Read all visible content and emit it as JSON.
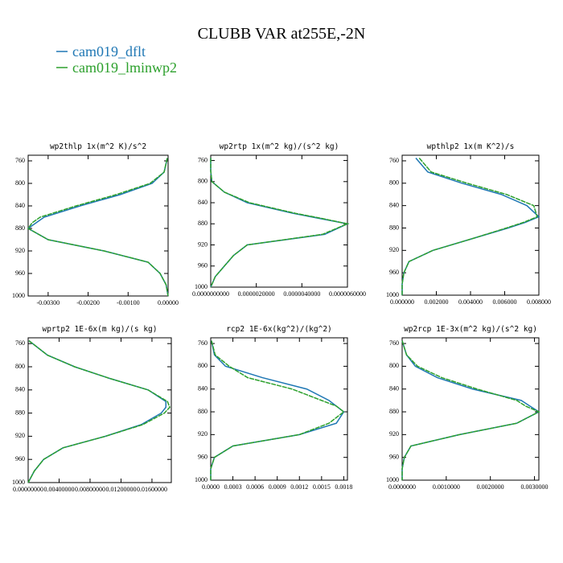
{
  "title": "CLUBB VAR at255E,-2N",
  "legend": [
    "cam019_dflt",
    "cam019_lminwp2"
  ],
  "chart_data": [
    {
      "type": "line",
      "title": "wp2thlp  1x(m^2 K)/s^2",
      "y": [
        755,
        780,
        800,
        820,
        840,
        860,
        870,
        880,
        900,
        920,
        940,
        960,
        980,
        1000
      ],
      "series": [
        {
          "color": "#1f77b4",
          "values": [
            -2e-05,
            -0.0001,
            -0.0004,
            -0.0012,
            -0.0022,
            -0.0031,
            -0.0033,
            -0.0035,
            -0.003,
            -0.0016,
            -0.0005,
            -0.0002,
            -5e-05,
            0
          ]
        },
        {
          "color": "#2ca02c",
          "values": [
            -2e-05,
            -0.0001,
            -0.00045,
            -0.0013,
            -0.0023,
            -0.0032,
            -0.0034,
            -0.0035,
            -0.003,
            -0.0016,
            -0.0005,
            -0.0002,
            -5e-05,
            0
          ]
        }
      ],
      "xlim": [
        -0.0035,
        0
      ],
      "xticks": [
        {
          "value": -0.003,
          "label": "-0.00300"
        },
        {
          "value": -0.002,
          "label": "-0.00200"
        },
        {
          "value": -0.001,
          "label": "-0.00100"
        },
        {
          "value": 0,
          "label": "0.00000"
        }
      ],
      "ylim": [
        1000,
        750
      ],
      "yticks": [
        760,
        800,
        840,
        880,
        920,
        960,
        1000
      ]
    },
    {
      "type": "line",
      "title": "wp2rtp  1x(m^2 kg)/(s^2 kg)",
      "y": [
        755,
        780,
        800,
        820,
        840,
        860,
        870,
        880,
        900,
        920,
        940,
        960,
        980,
        1000
      ],
      "series": [
        {
          "color": "#1f77b4",
          "values": [
            0,
            0,
            5e-08,
            6e-07,
            1.6e-06,
            3.6e-06,
            4.8e-06,
            6e-06,
            5e-06,
            1.6e-06,
            1e-06,
            6e-07,
            2e-07,
            0
          ]
        },
        {
          "color": "#2ca02c",
          "values": [
            0,
            0,
            5e-08,
            6e-07,
            1.7e-06,
            3.7e-06,
            4.9e-06,
            6e-06,
            4.9e-06,
            1.6e-06,
            1e-06,
            6e-07,
            2e-07,
            0
          ]
        }
      ],
      "xlim": [
        0,
        6e-06
      ],
      "xticks": [
        {
          "value": 0,
          "label": "0.0000000000"
        },
        {
          "value": 2e-06,
          "label": "0.0000020000"
        },
        {
          "value": 4e-06,
          "label": "0.0000040000"
        },
        {
          "value": 6e-06,
          "label": "0.0000060000"
        }
      ],
      "ylim": [
        1000,
        750
      ],
      "yticks": [
        760,
        800,
        840,
        880,
        920,
        960,
        1000
      ]
    },
    {
      "type": "line",
      "title": "wpthlp2  1x(m K^2)/s",
      "y": [
        755,
        780,
        800,
        820,
        840,
        860,
        870,
        880,
        900,
        920,
        940,
        960,
        980,
        1000
      ],
      "series": [
        {
          "color": "#1f77b4",
          "values": [
            0.0008,
            0.0015,
            0.0035,
            0.0058,
            0.0073,
            0.008,
            0.0072,
            0.0062,
            0.004,
            0.0018,
            0.0004,
            0.0001,
            0,
            0
          ]
        },
        {
          "color": "#2ca02c",
          "values": [
            0.001,
            0.0017,
            0.0038,
            0.0061,
            0.0077,
            0.0079,
            0.0071,
            0.0061,
            0.004,
            0.0018,
            0.0004,
            0.0001,
            0,
            0
          ]
        }
      ],
      "xlim": [
        0,
        0.008
      ],
      "xticks": [
        {
          "value": 0,
          "label": "0.000000"
        },
        {
          "value": 0.002,
          "label": "0.002000"
        },
        {
          "value": 0.004,
          "label": "0.004000"
        },
        {
          "value": 0.006,
          "label": "0.006000"
        },
        {
          "value": 0.008,
          "label": "0.008000"
        }
      ],
      "ylim": [
        1000,
        750
      ],
      "yticks": [
        760,
        800,
        840,
        880,
        920,
        960,
        1000
      ]
    },
    {
      "type": "line",
      "title": "wprtp2  1E-6x(m kg)/(s kg)",
      "y": [
        755,
        780,
        800,
        820,
        840,
        860,
        870,
        880,
        900,
        920,
        940,
        960,
        980,
        1000
      ],
      "series": [
        {
          "color": "#1f77b4",
          "values": [
            0.0001,
            0.0025,
            0.006,
            0.0105,
            0.0155,
            0.0178,
            0.0178,
            0.0172,
            0.0146,
            0.01,
            0.0045,
            0.002,
            0.0008,
            0
          ]
        },
        {
          "color": "#2ca02c",
          "values": [
            0.0001,
            0.0025,
            0.006,
            0.0105,
            0.0155,
            0.018,
            0.0183,
            0.0176,
            0.0148,
            0.01,
            0.0045,
            0.002,
            0.0008,
            0
          ]
        }
      ],
      "xlim": [
        0,
        0.0185
      ],
      "xticks": [
        {
          "value": 0,
          "label": "0.00000000"
        },
        {
          "value": 0.004,
          "label": "0.00400000"
        },
        {
          "value": 0.008,
          "label": "0.00800000"
        },
        {
          "value": 0.012,
          "label": "0.01200000"
        },
        {
          "value": 0.016,
          "label": "0.01600000"
        }
      ],
      "ylim": [
        1000,
        750
      ],
      "yticks": [
        760,
        800,
        840,
        880,
        920,
        960,
        1000
      ]
    },
    {
      "type": "line",
      "title": "rcp2  1E-6x(kg^2)/(kg^2)",
      "y": [
        755,
        780,
        800,
        820,
        840,
        860,
        870,
        880,
        900,
        920,
        940,
        960,
        980,
        1000
      ],
      "series": [
        {
          "color": "#1f77b4",
          "values": [
            1e-05,
            5e-05,
            0.0002,
            0.0007,
            0.0013,
            0.0016,
            0.0017,
            0.0018,
            0.0017,
            0.0012,
            0.0003,
            5e-05,
            0,
            0
          ]
        },
        {
          "color": "#2ca02c",
          "values": [
            1e-05,
            6e-05,
            0.00025,
            0.0005,
            0.0011,
            0.0015,
            0.0017,
            0.0018,
            0.0016,
            0.0012,
            0.0003,
            5e-05,
            0,
            0
          ]
        }
      ],
      "xlim": [
        0,
        0.00185
      ],
      "xticks": [
        {
          "value": 0,
          "label": "0.0000"
        },
        {
          "value": 0.0003,
          "label": "0.0003"
        },
        {
          "value": 0.0006,
          "label": "0.0006"
        },
        {
          "value": 0.0009,
          "label": "0.0009"
        },
        {
          "value": 0.0012,
          "label": "0.0012"
        },
        {
          "value": 0.0015,
          "label": "0.0015"
        },
        {
          "value": 0.0018,
          "label": "0.0018"
        }
      ],
      "ylim": [
        1000,
        750
      ],
      "yticks": [
        760,
        800,
        840,
        880,
        920,
        960,
        1000
      ]
    },
    {
      "type": "line",
      "title": "wp2rcp  1E-3x(m^2 kg)/(s^2 kg)",
      "y": [
        755,
        780,
        800,
        820,
        840,
        860,
        870,
        880,
        900,
        920,
        940,
        960,
        980,
        1000
      ],
      "series": [
        {
          "color": "#1f77b4",
          "values": [
            0,
            0.0001,
            0.0003,
            0.0008,
            0.0016,
            0.0027,
            0.0029,
            0.0031,
            0.0026,
            0.0013,
            0.0002,
            5e-05,
            0,
            0
          ]
        },
        {
          "color": "#2ca02c",
          "values": [
            0,
            0.0001,
            0.00035,
            0.0009,
            0.0017,
            0.0026,
            0.0028,
            0.0031,
            0.0026,
            0.0013,
            0.0002,
            5e-05,
            0,
            0
          ]
        }
      ],
      "xlim": [
        0,
        0.0031
      ],
      "xticks": [
        {
          "value": 0,
          "label": "0.0000000"
        },
        {
          "value": 0.001,
          "label": "0.0010000"
        },
        {
          "value": 0.002,
          "label": "0.0020000"
        },
        {
          "value": 0.003,
          "label": "0.0030000"
        }
      ],
      "ylim": [
        1000,
        750
      ],
      "yticks": [
        760,
        800,
        840,
        880,
        920,
        960,
        1000
      ]
    }
  ]
}
